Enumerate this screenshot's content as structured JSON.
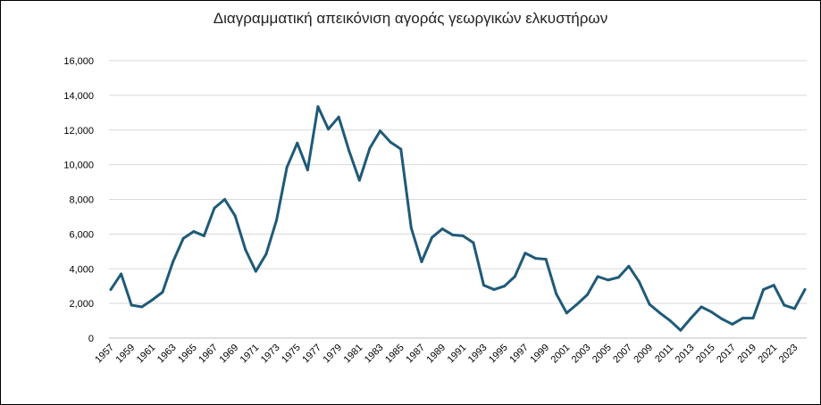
{
  "chart_data": {
    "type": "line",
    "title": "Διαγραμματική απεικόνιση αγοράς γεωργικών ελκυστήρων",
    "xlabel": "",
    "ylabel": "",
    "ylim": [
      0,
      16000
    ],
    "yticks": [
      0,
      2000,
      4000,
      6000,
      8000,
      10000,
      12000,
      14000,
      16000
    ],
    "ytick_labels": [
      "0",
      "2,000",
      "4,000",
      "6,000",
      "8,000",
      "10,000",
      "12,000",
      "14,000",
      "16,000"
    ],
    "grid": "horizontal",
    "legend": "none",
    "line_color": "#1f5a78",
    "x": [
      1957,
      1958,
      1959,
      1960,
      1961,
      1962,
      1963,
      1964,
      1965,
      1966,
      1967,
      1968,
      1969,
      1970,
      1971,
      1972,
      1973,
      1974,
      1975,
      1976,
      1977,
      1978,
      1979,
      1980,
      1981,
      1982,
      1983,
      1984,
      1985,
      1986,
      1987,
      1988,
      1989,
      1990,
      1991,
      1992,
      1993,
      1994,
      1995,
      1996,
      1997,
      1998,
      1999,
      2000,
      2001,
      2002,
      2003,
      2004,
      2005,
      2006,
      2007,
      2008,
      2009,
      2010,
      2011,
      2012,
      2013,
      2014,
      2015,
      2016,
      2017,
      2018,
      2019,
      2020,
      2021,
      2022,
      2023,
      2024
    ],
    "xtick_labels": [
      "1957",
      "1959",
      "1961",
      "1963",
      "1965",
      "1967",
      "1969",
      "1971",
      "1973",
      "1975",
      "1977",
      "1979",
      "1981",
      "1983",
      "1985",
      "1987",
      "1989",
      "1991",
      "1993",
      "1995",
      "1997",
      "1999",
      "2001",
      "2003",
      "2005",
      "2007",
      "2009",
      "2011",
      "2013",
      "2015",
      "2017",
      "2019",
      "2021",
      "2023"
    ],
    "series": [
      {
        "values": [
          2800,
          3700,
          1900,
          1800,
          2200,
          2650,
          4400,
          5750,
          6150,
          5900,
          7500,
          8000,
          7050,
          5100,
          3850,
          4850,
          6800,
          9850,
          11250,
          9700,
          13350,
          12050,
          12750,
          10800,
          9100,
          10950,
          11950,
          11300,
          10900,
          6350,
          4400,
          5800,
          6300,
          5950,
          5900,
          5500,
          3050,
          2800,
          3000,
          3550,
          4900,
          4600,
          4550,
          2550,
          1450,
          1950,
          2500,
          3550,
          3350,
          3500,
          4150,
          3250,
          1950,
          1450,
          1000,
          450,
          1150,
          1800,
          1500,
          1100,
          800,
          1150,
          1150,
          2800,
          3050,
          1900,
          1700,
          2800
        ]
      }
    ]
  }
}
